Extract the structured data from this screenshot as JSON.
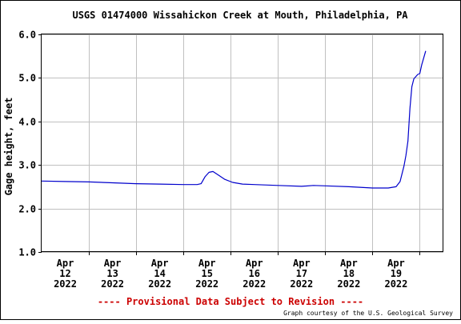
{
  "chart_data": {
    "type": "line",
    "title": "USGS 01474000 Wissahickon Creek at Mouth, Philadelphia, PA",
    "ylabel": "Gage height, feet",
    "xlabel": "",
    "ylim": [
      1.0,
      6.0
    ],
    "yticks": [
      "1.0",
      "2.0",
      "3.0",
      "4.0",
      "5.0",
      "6.0"
    ],
    "xlim": [
      "2022-04-12 00:00",
      "2022-04-20 00:00"
    ],
    "xticks": [
      {
        "date": "2022-04-12",
        "line1": "Apr",
        "line2": "12",
        "line3": "2022"
      },
      {
        "date": "2022-04-13",
        "line1": "Apr",
        "line2": "13",
        "line3": "2022"
      },
      {
        "date": "2022-04-14",
        "line1": "Apr",
        "line2": "14",
        "line3": "2022"
      },
      {
        "date": "2022-04-15",
        "line1": "Apr",
        "line2": "15",
        "line3": "2022"
      },
      {
        "date": "2022-04-16",
        "line1": "Apr",
        "line2": "16",
        "line3": "2022"
      },
      {
        "date": "2022-04-17",
        "line1": "Apr",
        "line2": "17",
        "line3": "2022"
      },
      {
        "date": "2022-04-18",
        "line1": "Apr",
        "line2": "18",
        "line3": "2022"
      },
      {
        "date": "2022-04-19",
        "line1": "Apr",
        "line2": "19",
        "line3": "2022"
      }
    ],
    "grid": true,
    "series": [
      {
        "color": "#0000cc",
        "points": [
          {
            "x": "2022-04-11 12:00",
            "y": 2.63
          },
          {
            "x": "2022-04-12 00:00",
            "y": 2.62
          },
          {
            "x": "2022-04-12 12:00",
            "y": 2.61
          },
          {
            "x": "2022-04-13 00:00",
            "y": 2.59
          },
          {
            "x": "2022-04-13 12:00",
            "y": 2.57
          },
          {
            "x": "2022-04-14 00:00",
            "y": 2.56
          },
          {
            "x": "2022-04-14 12:00",
            "y": 2.55
          },
          {
            "x": "2022-04-14 19:00",
            "y": 2.55
          },
          {
            "x": "2022-04-14 21:00",
            "y": 2.57
          },
          {
            "x": "2022-04-14 23:00",
            "y": 2.73
          },
          {
            "x": "2022-04-15 01:00",
            "y": 2.83
          },
          {
            "x": "2022-04-15 03:00",
            "y": 2.85
          },
          {
            "x": "2022-04-15 06:00",
            "y": 2.76
          },
          {
            "x": "2022-04-15 09:00",
            "y": 2.67
          },
          {
            "x": "2022-04-15 13:00",
            "y": 2.6
          },
          {
            "x": "2022-04-15 18:00",
            "y": 2.56
          },
          {
            "x": "2022-04-16 00:00",
            "y": 2.55
          },
          {
            "x": "2022-04-16 12:00",
            "y": 2.53
          },
          {
            "x": "2022-04-17 00:00",
            "y": 2.51
          },
          {
            "x": "2022-04-17 06:00",
            "y": 2.53
          },
          {
            "x": "2022-04-17 12:00",
            "y": 2.52
          },
          {
            "x": "2022-04-18 00:00",
            "y": 2.5
          },
          {
            "x": "2022-04-18 12:00",
            "y": 2.47
          },
          {
            "x": "2022-04-18 20:00",
            "y": 2.47
          },
          {
            "x": "2022-04-19 00:00",
            "y": 2.5
          },
          {
            "x": "2022-04-19 02:00",
            "y": 2.62
          },
          {
            "x": "2022-04-19 04:00",
            "y": 2.98
          },
          {
            "x": "2022-04-19 05:00",
            "y": 3.22
          },
          {
            "x": "2022-04-19 06:00",
            "y": 3.55
          },
          {
            "x": "2022-04-19 07:00",
            "y": 4.3
          },
          {
            "x": "2022-04-19 08:00",
            "y": 4.8
          },
          {
            "x": "2022-04-19 09:00",
            "y": 4.98
          },
          {
            "x": "2022-04-19 11:00",
            "y": 5.08
          },
          {
            "x": "2022-04-19 12:00",
            "y": 5.1
          },
          {
            "x": "2022-04-19 13:00",
            "y": 5.3
          },
          {
            "x": "2022-04-19 15:00",
            "y": 5.62
          }
        ]
      }
    ]
  },
  "footer": {
    "provisional": "---- Provisional Data Subject to Revision ----",
    "courtesy": "Graph courtesy of the U.S. Geological Survey"
  },
  "colors": {
    "line": "#0000cc",
    "provisional": "#cc0000",
    "grid": "#c0c0c0",
    "axis": "#000000",
    "text": "#000000",
    "frame": "#000000"
  }
}
